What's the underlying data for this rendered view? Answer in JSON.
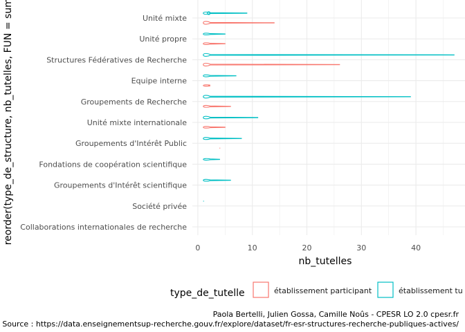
{
  "chart_data": {
    "type": "violin",
    "orientation": "horizontal",
    "xlabel": "nb_tutelles",
    "ylabel": "reorder(type_de_structure, nb_tutelles, FUN = sum)",
    "x_ticks": [
      0,
      10,
      20,
      30,
      40
    ],
    "xlim": [
      -1,
      49
    ],
    "grid": true,
    "legend_position": "bottom",
    "legend": {
      "title": "type_de_tutelle",
      "entries": [
        {
          "label": "établissement participant",
          "color": "#F8766D"
        },
        {
          "label": "établissement tu",
          "color": "#00BFC4"
        }
      ]
    },
    "categories": [
      "Unité mixte",
      "Unité propre",
      "Structures Fédératives de Recherche",
      "Equipe interne",
      "Groupements de Recherche",
      "Unité mixte internationale",
      "Groupements d'Intérêt Public",
      "Fondations de coopération scientifique",
      "Groupements d'Intérêt scientifique",
      "Société privée",
      "Collaborations internationales de recherche"
    ],
    "series": [
      {
        "name": "établissement participant",
        "color": "#F8766D",
        "ranges": [
          [
            1,
            14
          ],
          [
            1,
            5
          ],
          [
            1,
            26
          ],
          [
            1,
            2
          ],
          [
            1,
            6
          ],
          [
            1,
            5
          ],
          [
            4,
            4
          ],
          null,
          null,
          null,
          null
        ]
      },
      {
        "name": "établissement tu",
        "color": "#00BFC4",
        "ranges": [
          [
            1,
            9
          ],
          [
            1,
            5
          ],
          [
            1,
            47
          ],
          [
            1,
            7
          ],
          [
            1,
            39
          ],
          [
            1,
            11
          ],
          [
            1,
            8
          ],
          [
            1,
            4
          ],
          [
            1,
            6
          ],
          [
            1,
            1
          ],
          null
        ]
      }
    ],
    "caption": [
      "Paola Bertelli, Julien Gossa, Camille Noûs - CPESR LO 2.0 cpesr.fr",
      "Source : https://data.enseignementsup-recherche.gouv.fr/explore/dataset/fr-esr-structures-recherche-publiques-actives/"
    ]
  }
}
